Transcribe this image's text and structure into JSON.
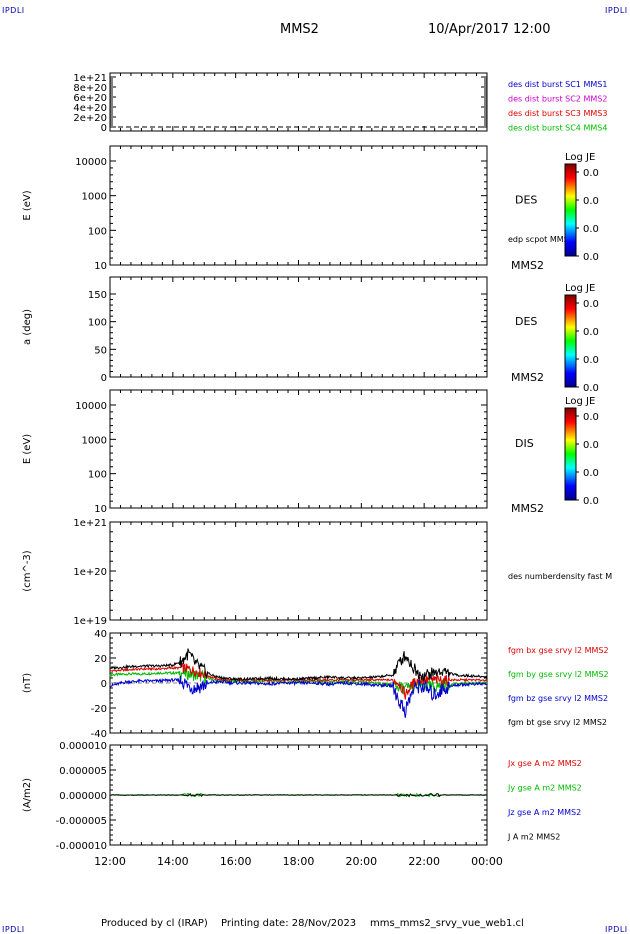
{
  "page": {
    "corner_label": "IPDLI",
    "spacecraft": "MMS2",
    "datetime": "10/Apr/2017 12:00",
    "footer": {
      "producer": "Produced by cl (IRAP)",
      "printing": "Printing date: 28/Nov/2023",
      "product": "mms_mms2_srvy_vue_web1.cl"
    }
  },
  "colorbar": {
    "title": "Log JE",
    "ticks": [
      "0.0",
      "0.0",
      "0.0",
      "0.0"
    ]
  },
  "chart_data": [
    {
      "type": "line",
      "panel": "distribution",
      "ylabel": "",
      "yticks": [
        "1e+21",
        "8e+20",
        "6e+20",
        "4e+20",
        "2e+20",
        "0"
      ],
      "ylim": [
        0,
        1.1e+21
      ],
      "series": [
        {
          "name": "des dist burst SC1 MMS1",
          "color": "#0000cc"
        },
        {
          "name": "des dist burst SC2 MMS2",
          "color": "#cc00cc"
        },
        {
          "name": "des dist burst SC3 MMS3",
          "color": "#dd0000"
        },
        {
          "name": "des dist burst SC4 MMS4",
          "color": "#00bb00"
        }
      ],
      "note_line": "dashed at 0"
    },
    {
      "type": "heatmap",
      "panel": "des-energy",
      "ylabel": "E (eV)",
      "scale": "log",
      "yticks": [
        "10000",
        "1000",
        "100",
        "10"
      ],
      "label": "DES",
      "overlay": "edp scpot MMS2",
      "spacecraft": "MMS2"
    },
    {
      "type": "heatmap",
      "panel": "des-pitch",
      "ylabel": "a (deg)",
      "yticks": [
        "150",
        "100",
        "50",
        "0"
      ],
      "ylim": [
        0,
        180
      ],
      "label": "DES",
      "spacecraft": "MMS2"
    },
    {
      "type": "heatmap",
      "panel": "dis-energy",
      "ylabel": "E (eV)",
      "scale": "log",
      "yticks": [
        "10000",
        "1000",
        "100",
        "10"
      ],
      "label": "DIS",
      "spacecraft": "MMS2"
    },
    {
      "type": "line",
      "panel": "density",
      "ylabel": "(cm^-3)",
      "scale": "log",
      "yticks": [
        "1e+21",
        "1e+20",
        "1e+19"
      ],
      "series": [
        {
          "name": "des numberdensity fast M",
          "color": "#000000"
        }
      ]
    },
    {
      "type": "line",
      "panel": "magnetic-field",
      "ylabel": "(nT)",
      "ylim": [
        -50,
        50
      ],
      "yticks": [
        "40",
        "20",
        "0",
        "-20",
        "-40"
      ],
      "series": [
        {
          "name": "fgm bx gse srvy l2 MMS2",
          "color": "#dd0000"
        },
        {
          "name": "fgm by gse srvy l2 MMS2",
          "color": "#00bb00"
        },
        {
          "name": "fgm bz gse srvy l2 MMS2",
          "color": "#0000cc"
        },
        {
          "name": "fgm bt gse srvy l2 MMS2",
          "color": "#000000"
        }
      ]
    },
    {
      "type": "line",
      "panel": "current-density",
      "ylabel": "(A/m2)",
      "ylim": [
        -1e-05,
        1e-05
      ],
      "yticks": [
        "0.000010",
        "0.000005",
        "0.000000",
        "-0.000005",
        "-0.000010"
      ],
      "series": [
        {
          "name": "Jx gse A m2 MMS2",
          "color": "#dd0000"
        },
        {
          "name": "Jy gse A m2 MMS2",
          "color": "#00bb00"
        },
        {
          "name": "Jz gse A m2 MMS2",
          "color": "#0000cc"
        },
        {
          "name": "J A m2 MMS2",
          "color": "#000000"
        }
      ]
    }
  ],
  "xaxis": {
    "ticks": [
      "12:00",
      "14:00",
      "16:00",
      "18:00",
      "20:00",
      "22:00",
      "00:00"
    ],
    "range_hours": [
      12,
      24
    ]
  },
  "bfield_profile": {
    "x_hours": [
      12.0,
      12.5,
      13.0,
      13.5,
      14.0,
      14.3,
      14.5,
      14.7,
      15.0,
      15.3,
      15.6,
      16.0,
      16.5,
      17.0,
      17.5,
      18.0,
      18.5,
      19.0,
      19.5,
      20.0,
      20.5,
      21.0,
      21.2,
      21.4,
      21.6,
      21.8,
      22.0,
      22.3,
      22.6,
      23.0,
      23.5,
      24.0
    ],
    "bt": [
      15,
      16,
      17,
      17,
      18,
      22,
      30,
      20,
      12,
      7,
      5,
      4,
      4,
      5,
      4,
      4,
      5,
      6,
      5,
      5,
      6,
      8,
      20,
      28,
      18,
      10,
      8,
      10,
      12,
      8,
      7,
      6
    ],
    "bx": [
      12,
      13,
      14,
      14,
      15,
      15,
      14,
      12,
      9,
      5,
      3,
      3,
      3,
      3,
      3,
      3,
      3,
      3,
      3,
      3,
      3,
      3,
      0,
      -12,
      -2,
      3,
      3,
      3,
      3,
      3,
      3,
      3
    ],
    "by": [
      8,
      9,
      9,
      10,
      10,
      10,
      9,
      8,
      6,
      3,
      2,
      2,
      1,
      2,
      1,
      1,
      1,
      1,
      1,
      1,
      0,
      -2,
      -4,
      -6,
      -3,
      -2,
      -3,
      -4,
      -2,
      -1,
      0,
      0
    ],
    "bz": [
      -3,
      1,
      2,
      2,
      3,
      2,
      -3,
      -5,
      -2,
      1,
      1,
      0,
      0,
      -1,
      0,
      0,
      0,
      -1,
      0,
      -1,
      -2,
      -3,
      -18,
      -28,
      -10,
      -3,
      -4,
      -12,
      -6,
      -2,
      -1,
      -1
    ]
  }
}
